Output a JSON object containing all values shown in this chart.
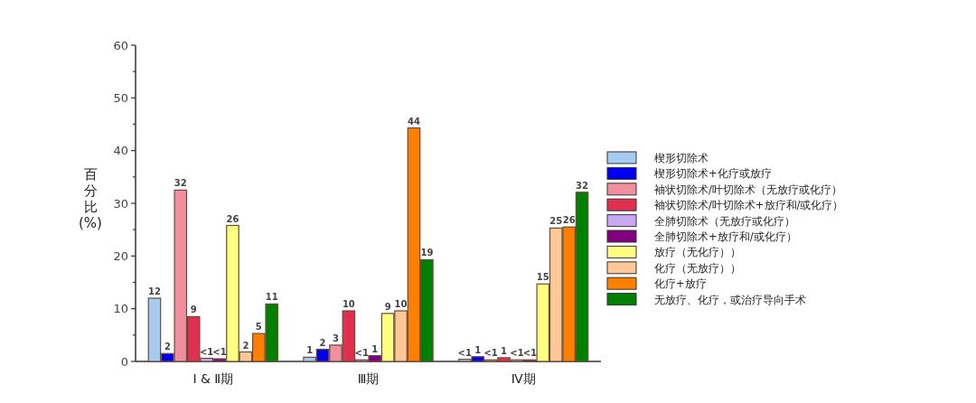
{
  "chart_data": {
    "type": "bar",
    "ylabel": "百分比(%)",
    "categories": [
      "Ⅰ & Ⅱ期",
      "Ⅲ期",
      "Ⅳ期"
    ],
    "ylim": [
      0,
      60
    ],
    "yticks": [
      0,
      {
        "value": 5,
        "label": null
      },
      10,
      {
        "value": 15,
        "label": null
      },
      20,
      {
        "value": 25,
        "label": null
      },
      30,
      {
        "value": 35,
        "label": null
      },
      40,
      {
        "value": 45,
        "label": null
      },
      50,
      {
        "value": 55,
        "label": null
      },
      60
    ],
    "legend": "right",
    "grid": false,
    "series": [
      {
        "name": "楔形切除术",
        "color": "#a6cbf0",
        "values": [
          12,
          0.8,
          0.4
        ],
        "value_labels": [
          "12",
          "1",
          "<1"
        ]
      },
      {
        "name": "楔形切除术+化疗或放疗",
        "color": "#0000ee",
        "values": [
          1.5,
          2.3,
          0.9
        ],
        "value_labels": [
          "2",
          "2",
          "1"
        ]
      },
      {
        "name": "袖状切除术/叶切除术（无放疗或化疗）",
        "color": "#f0909f",
        "values": [
          32.5,
          3.1,
          0.3
        ],
        "value_labels": [
          "32",
          "3",
          "<1"
        ]
      },
      {
        "name": "袖状切除术/叶切除术+放疗和/或化疗）",
        "color": "#e0304f",
        "values": [
          8.5,
          9.6,
          0.7
        ],
        "value_labels": [
          "9",
          "10",
          "1"
        ]
      },
      {
        "name": "全肺切除术（无放疗或化疗）",
        "color": "#c8a8f0",
        "values": [
          0.6,
          0.3,
          0.3
        ],
        "value_labels": [
          "<1",
          "<1",
          "<1"
        ]
      },
      {
        "name": "全肺切除术+放疗和/或化疗）",
        "color": "#800080",
        "values": [
          0.5,
          1.1,
          0.3
        ],
        "value_labels": [
          "<1",
          "1",
          "<1"
        ]
      },
      {
        "name": "放疗（无化疗））",
        "color": "#ffff80",
        "values": [
          25.8,
          9.1,
          14.7
        ],
        "value_labels": [
          "26",
          "9",
          "15"
        ]
      },
      {
        "name": "化疗（无放疗））",
        "color": "#ffc896",
        "values": [
          1.8,
          9.6,
          25.3
        ],
        "value_labels": [
          "2",
          "10",
          "25"
        ]
      },
      {
        "name": "化疗+放疗",
        "color": "#ff8000",
        "values": [
          5.3,
          44.3,
          25.5
        ],
        "value_labels": [
          "5",
          "44",
          "26"
        ]
      },
      {
        "name": "无放疗、化疗，或治疗导向手术",
        "color": "#008000",
        "values": [
          10.9,
          19.3,
          32.1
        ],
        "value_labels": [
          "11",
          "19",
          "32"
        ]
      }
    ]
  }
}
